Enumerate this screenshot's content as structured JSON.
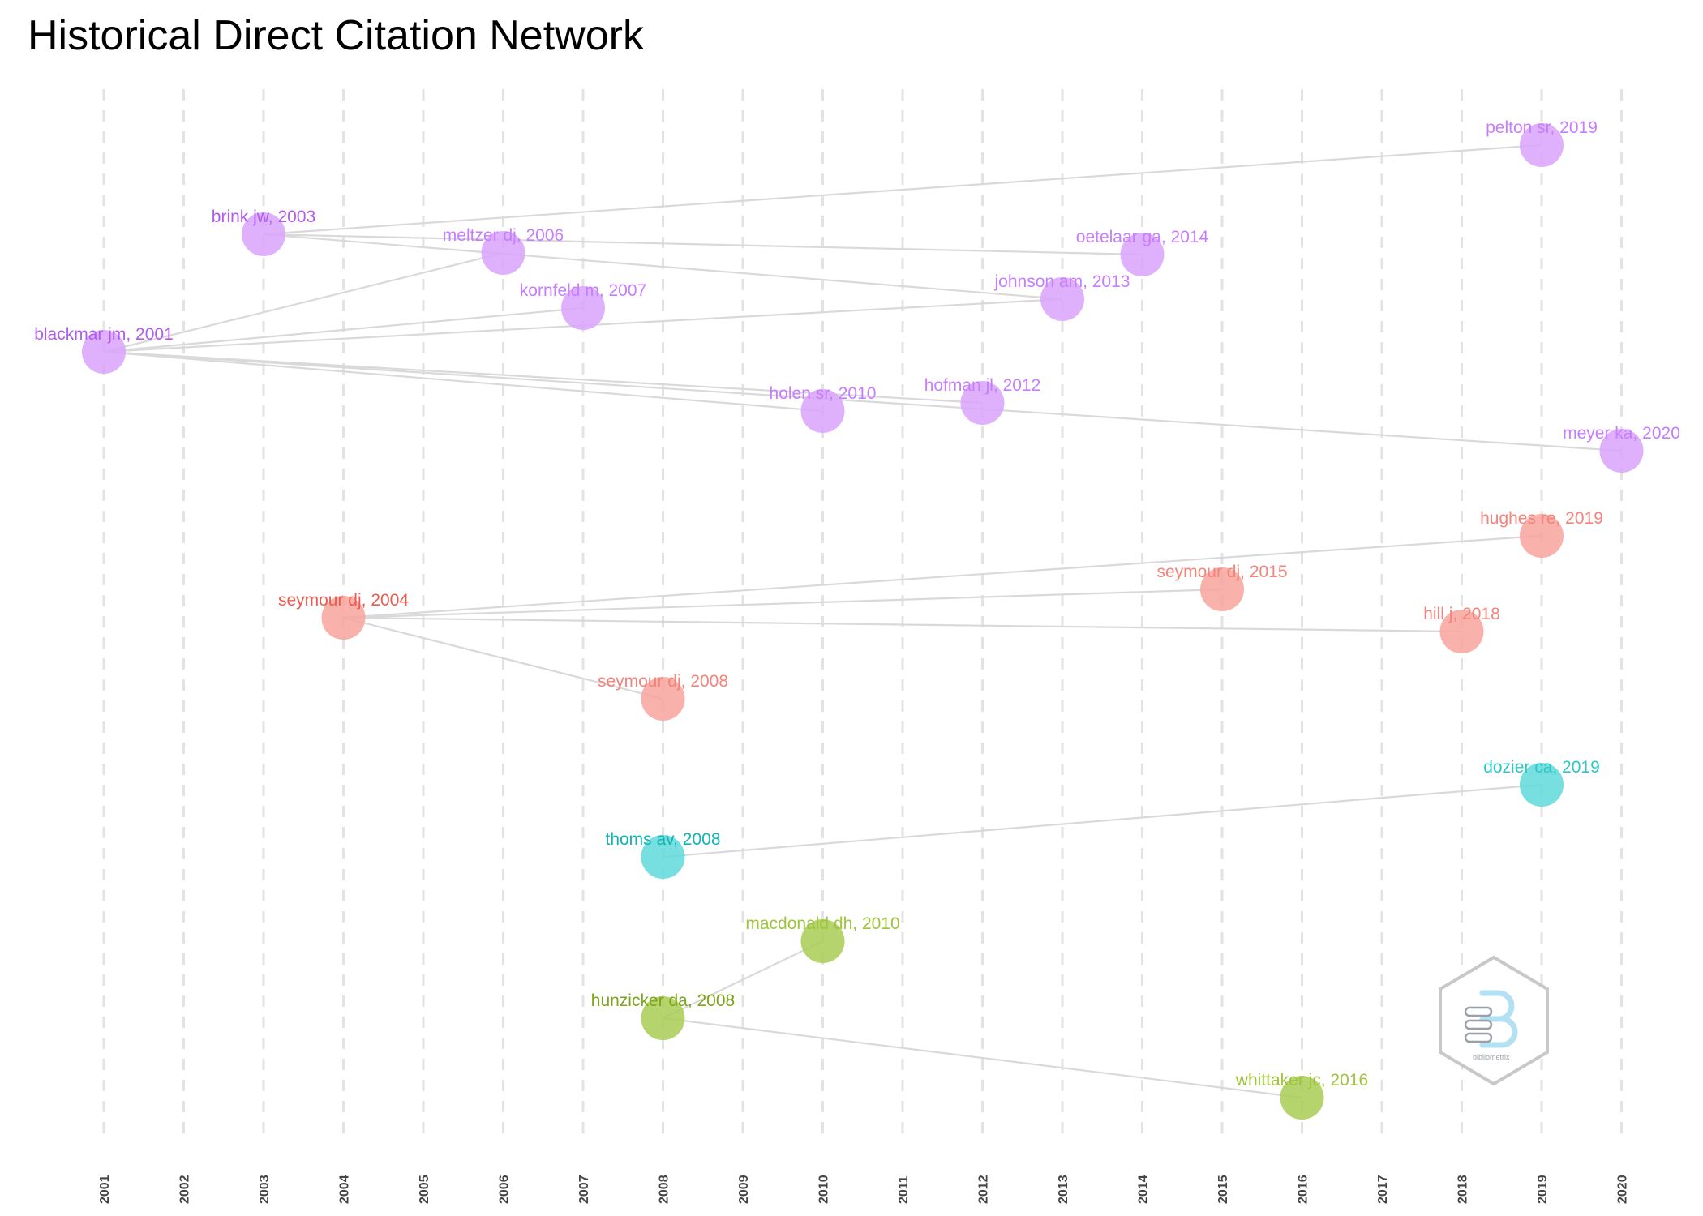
{
  "title": "Historical Direct Citation Network",
  "years": [
    "2001",
    "2002",
    "2003",
    "2004",
    "2005",
    "2006",
    "2007",
    "2008",
    "2009",
    "2010",
    "2011",
    "2012",
    "2013",
    "2014",
    "2015",
    "2016",
    "2017",
    "2018",
    "2019",
    "2020"
  ],
  "groups": {
    "purple": {
      "node": "#d9a3fb",
      "label": "#c77dff",
      "label_root": "#b15cf0"
    },
    "red": {
      "node": "#f8a39c",
      "label": "#f4837a",
      "label_root": "#ec5b4f"
    },
    "cyan": {
      "node": "#5fd9d9",
      "label": "#2cc7c7",
      "label_root": "#11b3b3"
    },
    "green": {
      "node": "#a9cd55",
      "label": "#9ec43c",
      "label_root": "#7ca419"
    }
  },
  "nodes": [
    {
      "id": "blackmar2001",
      "label": "blackmar jm, 2001",
      "year": 2001,
      "group": "purple",
      "root": true
    },
    {
      "id": "brink2003",
      "label": "brink jw, 2003",
      "year": 2003,
      "group": "purple",
      "root": true
    },
    {
      "id": "meltzer2006",
      "label": "meltzer dj, 2006",
      "year": 2006,
      "group": "purple"
    },
    {
      "id": "kornfeld2007",
      "label": "kornfeld m, 2007",
      "year": 2007,
      "group": "purple"
    },
    {
      "id": "holen2010",
      "label": "holen sr, 2010",
      "year": 2010,
      "group": "purple"
    },
    {
      "id": "hofman2012",
      "label": "hofman jl, 2012",
      "year": 2012,
      "group": "purple"
    },
    {
      "id": "johnson2013",
      "label": "johnson am, 2013",
      "year": 2013,
      "group": "purple"
    },
    {
      "id": "oetelaar2014",
      "label": "oetelaar ga, 2014",
      "year": 2014,
      "group": "purple"
    },
    {
      "id": "pelton2019",
      "label": "pelton sr, 2019",
      "year": 2019,
      "group": "purple"
    },
    {
      "id": "meyer2020",
      "label": "meyer ka, 2020",
      "year": 2020,
      "group": "purple"
    },
    {
      "id": "seymour2004",
      "label": "seymour dj, 2004",
      "year": 2004,
      "group": "red",
      "root": true
    },
    {
      "id": "seymour2008",
      "label": "seymour dj, 2008",
      "year": 2008,
      "group": "red"
    },
    {
      "id": "seymour2015",
      "label": "seymour dj, 2015",
      "year": 2015,
      "group": "red"
    },
    {
      "id": "hill2018",
      "label": "hill j, 2018",
      "year": 2018,
      "group": "red"
    },
    {
      "id": "hughes2019",
      "label": "hughes re, 2019",
      "year": 2019,
      "group": "red"
    },
    {
      "id": "thoms2008",
      "label": "thoms av, 2008",
      "year": 2008,
      "group": "cyan",
      "root": true
    },
    {
      "id": "dozier2019",
      "label": "dozier ca, 2019",
      "year": 2019,
      "group": "cyan"
    },
    {
      "id": "hunzicker2008",
      "label": "hunzicker da, 2008",
      "year": 2008,
      "group": "green",
      "root": true
    },
    {
      "id": "macdonald2010",
      "label": "macdonald dh, 2010",
      "year": 2010,
      "group": "green"
    },
    {
      "id": "whittaker2016",
      "label": "whittaker jc, 2016",
      "year": 2016,
      "group": "green"
    }
  ],
  "edges": [
    [
      "brink2003",
      "pelton2019"
    ],
    [
      "brink2003",
      "oetelaar2014"
    ],
    [
      "brink2003",
      "johnson2013"
    ],
    [
      "blackmar2001",
      "meltzer2006"
    ],
    [
      "blackmar2001",
      "kornfeld2007"
    ],
    [
      "blackmar2001",
      "johnson2013"
    ],
    [
      "blackmar2001",
      "holen2010"
    ],
    [
      "blackmar2001",
      "hofman2012"
    ],
    [
      "blackmar2001",
      "meyer2020"
    ],
    [
      "seymour2004",
      "hughes2019"
    ],
    [
      "seymour2004",
      "seymour2015"
    ],
    [
      "seymour2004",
      "hill2018"
    ],
    [
      "seymour2004",
      "seymour2008"
    ],
    [
      "thoms2008",
      "dozier2019"
    ],
    [
      "hunzicker2008",
      "macdonald2010"
    ],
    [
      "hunzicker2008",
      "whittaker2016"
    ]
  ],
  "logo": {
    "text": "bibliometrix",
    "color": "#b3e0f2",
    "border": "#c8c8c8"
  }
}
